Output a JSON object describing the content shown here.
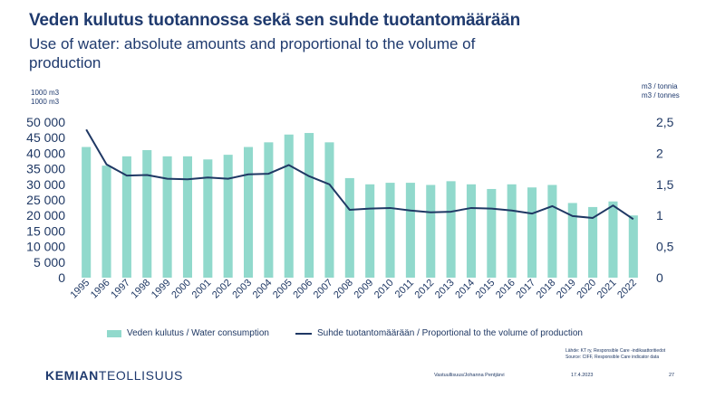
{
  "slide": {
    "title_fi": "Veden kulutus tuotannossa sekä sen suhde  tuotantomäärään",
    "title_en": "Use of water: absolute amounts and proportional to the volume of production",
    "unit_left_1": "1000 m3",
    "unit_left_2": "1000 m3",
    "unit_right_1": "m3 / tonnia",
    "unit_right_2": "m3  / tonnes",
    "source_1": "Lähde: KT ry, Responsible Care -indikaattoritiedot",
    "source_2": "Source: CIFF, Responsible Care indicator data",
    "logo_bold": "KEMIAN",
    "logo_thin": "TEOLLISUUS",
    "footer_author": "Vastuullisuus/Johanna Pentjärvi",
    "footer_date": "17.4.2023",
    "footer_page": "27"
  },
  "colors": {
    "bar": "#91d9cc",
    "line": "#1f3864",
    "title": "#1f3a6e"
  },
  "chart_data": {
    "type": "bar",
    "categories": [
      "1995",
      "1996",
      "1997",
      "1998",
      "1999",
      "2000",
      "2001",
      "2002",
      "2003",
      "2004",
      "2005",
      "2006",
      "2007",
      "2008",
      "2009",
      "2010",
      "2011",
      "2012",
      "2013",
      "2014",
      "2015",
      "2016",
      "2017",
      "2018",
      "2019",
      "2020",
      "2021",
      "2022"
    ],
    "series": [
      {
        "name": "Veden kulutus / Water consumption",
        "type": "bar",
        "axis": "left",
        "values": [
          42000,
          36000,
          39000,
          41000,
          39000,
          39000,
          38000,
          39500,
          42000,
          43500,
          46000,
          46500,
          43500,
          32000,
          30000,
          30500,
          30500,
          29800,
          31000,
          30000,
          28500,
          30000,
          29000,
          29800,
          24000,
          22700,
          24500,
          20000
        ]
      },
      {
        "name": "Suhde tuotantomäärään / Proportional to the volume of production",
        "type": "line",
        "axis": "right",
        "values": [
          2.38,
          1.82,
          1.64,
          1.65,
          1.59,
          1.58,
          1.61,
          1.59,
          1.66,
          1.67,
          1.81,
          1.63,
          1.5,
          1.09,
          1.11,
          1.12,
          1.08,
          1.05,
          1.06,
          1.12,
          1.11,
          1.08,
          1.03,
          1.15,
          0.99,
          0.96,
          1.16,
          0.94
        ]
      }
    ],
    "y_left": {
      "lim": [
        0,
        50000
      ],
      "ticks": [
        0,
        5000,
        10000,
        15000,
        20000,
        25000,
        30000,
        35000,
        40000,
        45000,
        50000
      ],
      "tick_labels": [
        "0",
        "5 000",
        "10 000",
        "15 000",
        "20 000",
        "25 000",
        "30 000",
        "35 000",
        "40 000",
        "45 000",
        "50 000"
      ]
    },
    "y_right": {
      "lim": [
        0,
        2.5
      ],
      "ticks": [
        0,
        0.5,
        1,
        1.5,
        2,
        2.5
      ],
      "tick_labels": [
        "0",
        "0,5",
        "1",
        "1,5",
        "2",
        "2,5"
      ]
    },
    "grid": false,
    "legend": "bottom"
  }
}
